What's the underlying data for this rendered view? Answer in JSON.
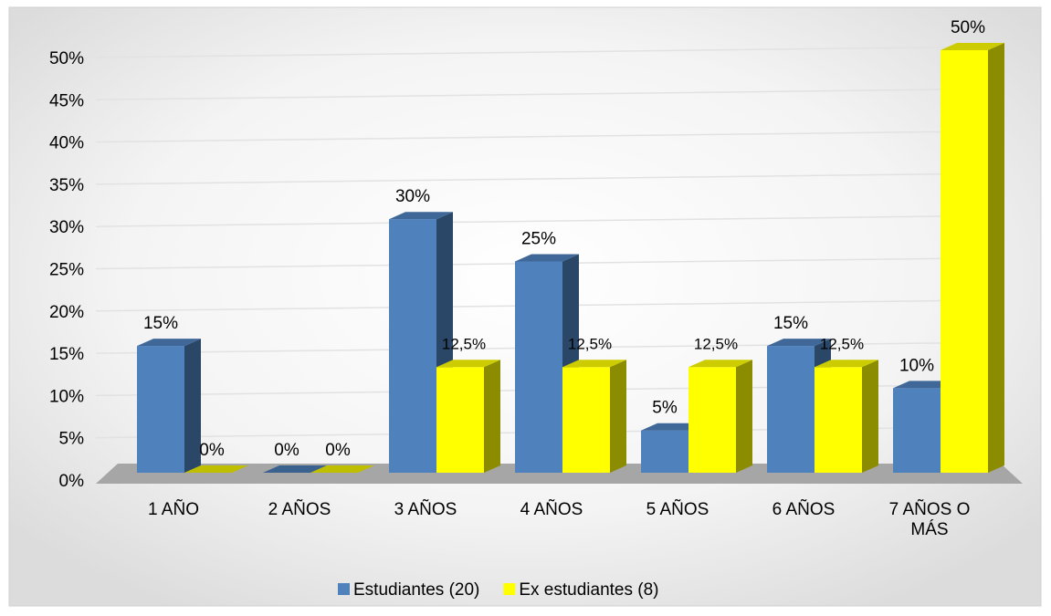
{
  "chart_data": {
    "type": "bar3d",
    "categories": [
      "1 AÑO",
      "2 AÑOS",
      "3 AÑOS",
      "4 AÑOS",
      "5 AÑOS",
      "6 AÑOS",
      "7 AÑOS O MÁS"
    ],
    "series": [
      {
        "name": "Estudiantes (20)",
        "color": "#4f81bd",
        "values": [
          15,
          0,
          30,
          25,
          5,
          15,
          10
        ],
        "value_labels": [
          "15%",
          "0%",
          "30%",
          "25%",
          "5%",
          "15%",
          "10%"
        ]
      },
      {
        "name": "Ex estudiantes (8)",
        "color": "#ffff00",
        "values": [
          0,
          0,
          12.5,
          12.5,
          12.5,
          12.5,
          50
        ],
        "value_labels": [
          "0%",
          "0%",
          "12,5%",
          "12,5%",
          "12,5%",
          "12,5%",
          "50%"
        ]
      }
    ],
    "ylim": [
      0,
      50
    ],
    "yticks": [
      {
        "value": 0,
        "label": "0%"
      },
      {
        "value": 5,
        "label": "5%"
      },
      {
        "value": 10,
        "label": "10%"
      },
      {
        "value": 15,
        "label": "15%"
      },
      {
        "value": 20,
        "label": "20%"
      },
      {
        "value": 25,
        "label": "25%"
      },
      {
        "value": 30,
        "label": "30%"
      },
      {
        "value": 35,
        "label": "35%"
      },
      {
        "value": 40,
        "label": "40%"
      },
      {
        "value": 45,
        "label": "45%"
      },
      {
        "value": 50,
        "label": "50%"
      }
    ],
    "grid": true,
    "legend": "bottom"
  }
}
